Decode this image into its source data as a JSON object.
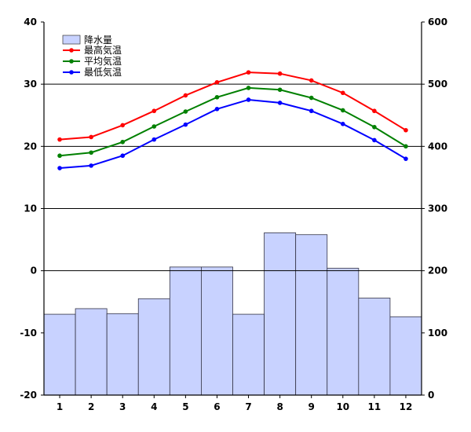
{
  "chart_data": {
    "type": "bar+line",
    "categories": [
      "1",
      "2",
      "3",
      "4",
      "5",
      "6",
      "7",
      "8",
      "9",
      "10",
      "11",
      "12"
    ],
    "left_axis": {
      "ylim": [
        -20,
        40
      ],
      "ticks": [
        "-20",
        "-10",
        "0",
        "10",
        "20",
        "30",
        "40"
      ]
    },
    "right_axis": {
      "ylim": [
        0,
        600
      ],
      "ticks": [
        "0",
        "100",
        "200",
        "300",
        "400",
        "500",
        "600"
      ]
    },
    "bars": {
      "name": "降水量",
      "axis": "right",
      "color": "#c8d2ff",
      "values": [
        130,
        139,
        131,
        155,
        206,
        206,
        130,
        261,
        258,
        204,
        156,
        126
      ]
    },
    "series": [
      {
        "name": "最高気温",
        "axis": "left",
        "color": "#ff0000",
        "values": [
          21.1,
          21.5,
          23.4,
          25.7,
          28.2,
          30.3,
          31.9,
          31.7,
          30.6,
          28.6,
          25.7,
          22.6
        ]
      },
      {
        "name": "平均気温",
        "axis": "left",
        "color": "#008000",
        "values": [
          18.5,
          19.0,
          20.7,
          23.2,
          25.6,
          27.9,
          29.4,
          29.1,
          27.8,
          25.8,
          23.1,
          20.0
        ]
      },
      {
        "name": "最低気温",
        "axis": "left",
        "color": "#0000ff",
        "values": [
          16.5,
          16.9,
          18.5,
          21.1,
          23.5,
          26.0,
          27.5,
          27.0,
          25.7,
          23.6,
          21.0,
          18.0
        ]
      }
    ],
    "gridlines": [
      "10",
      "20",
      "30",
      "0"
    ],
    "legend_position": "top-left",
    "title": "",
    "xlabel": "",
    "ylabel": ""
  }
}
